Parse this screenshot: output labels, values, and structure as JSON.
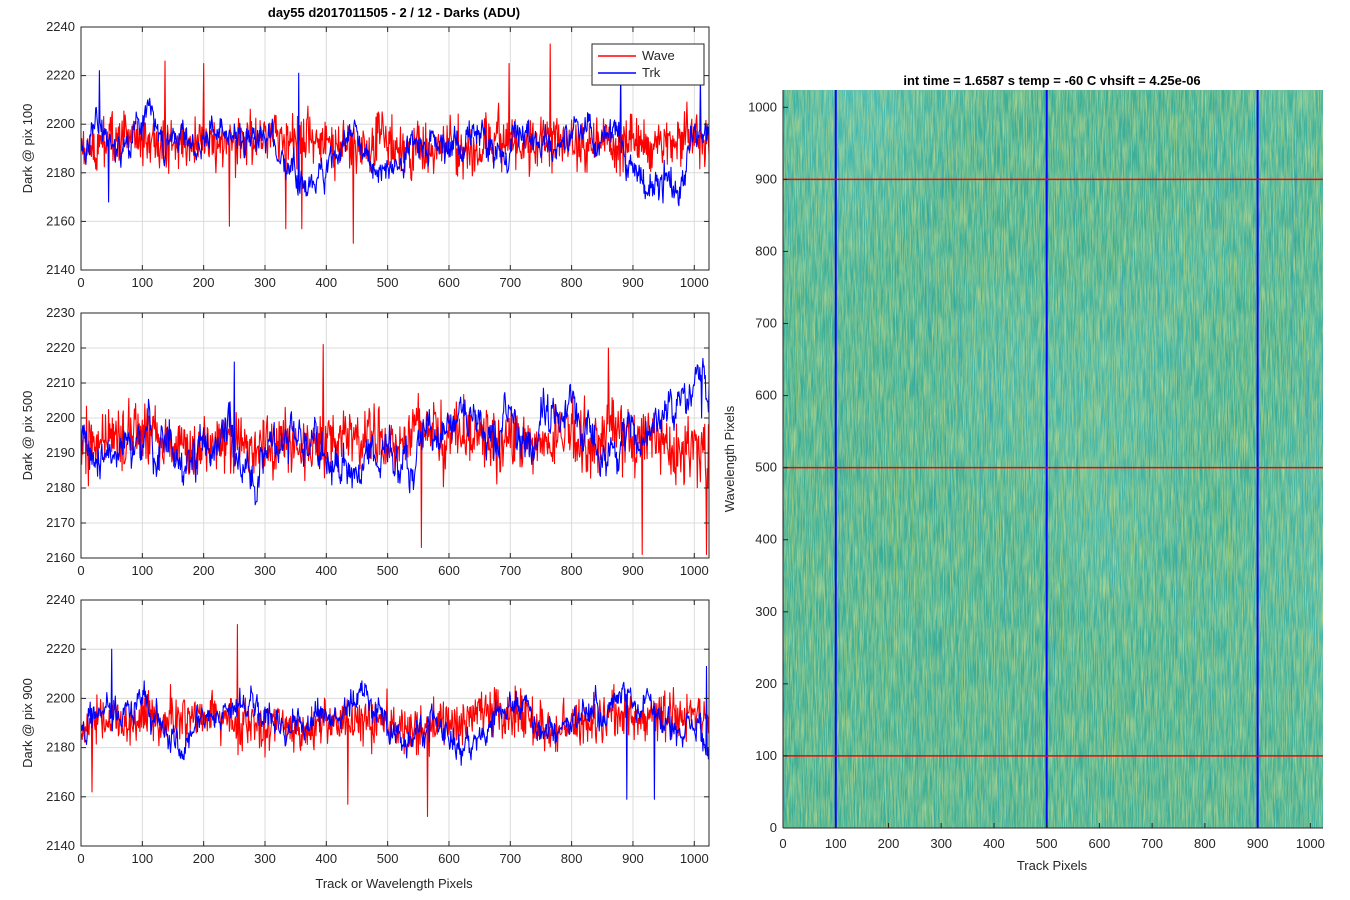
{
  "figure": {
    "title": "day55 d2017011505 - 2 / 12 - Darks (ADU)",
    "shared_xlabel": "Track or Wavelength Pixels"
  },
  "colors": {
    "wave": "#ff0000",
    "trk": "#0000ff",
    "grid": "#dcdcdc",
    "axis": "#262626"
  },
  "chart_data": [
    {
      "type": "line",
      "ylabel": "Dark @ pix 100",
      "xlim": [
        0,
        1024
      ],
      "ylim": [
        2140,
        2240
      ],
      "xticks": [
        0,
        100,
        200,
        300,
        400,
        500,
        600,
        700,
        800,
        900,
        1000
      ],
      "yticks": [
        2140,
        2160,
        2180,
        2200,
        2220,
        2240
      ],
      "grid": true,
      "legend": {
        "placement": "top-right",
        "entries": [
          "Wave",
          "Trk"
        ]
      },
      "series": [
        {
          "name": "Wave",
          "mean": 2192,
          "noise": 8.5,
          "wander": 2,
          "seed": 11,
          "spikes": [
            [
              242,
              2158
            ],
            [
              334,
              2157
            ],
            [
              360,
              2157
            ],
            [
              444,
              2151
            ],
            [
              765,
              2233
            ],
            [
              698,
              2225
            ],
            [
              137,
              2226
            ],
            [
              200,
              2225
            ]
          ]
        },
        {
          "name": "Trk",
          "mean": 2193,
          "noise": 3.5,
          "wander": 8,
          "seed": 23,
          "spikes": [
            [
              30,
              2222
            ],
            [
              45,
              2168
            ],
            [
              355,
              2221
            ],
            [
              880,
              2222
            ],
            [
              1010,
              2220
            ]
          ]
        }
      ]
    },
    {
      "type": "line",
      "ylabel": "Dark @ pix 500",
      "xlim": [
        0,
        1024
      ],
      "ylim": [
        2160,
        2230
      ],
      "xticks": [
        0,
        100,
        200,
        300,
        400,
        500,
        600,
        700,
        800,
        900,
        1000
      ],
      "yticks": [
        2160,
        2170,
        2180,
        2190,
        2200,
        2210,
        2220,
        2230
      ],
      "grid": true,
      "series": [
        {
          "name": "Wave",
          "mean": 2194,
          "noise": 7.5,
          "wander": 2,
          "seed": 37,
          "spikes": [
            [
              395,
              2221
            ],
            [
              860,
              2220
            ],
            [
              555,
              2163
            ],
            [
              1020,
              2161
            ],
            [
              915,
              2161
            ]
          ]
        },
        {
          "name": "Trk",
          "mean": 2192,
          "noise": 3,
          "wander": 7,
          "seed": 41,
          "spikes": [
            [
              250,
              2216
            ],
            [
              1012,
              2200
            ]
          ]
        }
      ]
    },
    {
      "type": "line",
      "ylabel": "Dark @ pix 900",
      "xlim": [
        0,
        1024
      ],
      "ylim": [
        2140,
        2240
      ],
      "xticks": [
        0,
        100,
        200,
        300,
        400,
        500,
        600,
        700,
        800,
        900,
        1000
      ],
      "yticks": [
        2140,
        2160,
        2180,
        2200,
        2220,
        2240
      ],
      "grid": true,
      "series": [
        {
          "name": "Wave",
          "mean": 2192,
          "noise": 8,
          "wander": 2,
          "seed": 53,
          "spikes": [
            [
              255,
              2230
            ],
            [
              565,
              2152
            ],
            [
              18,
              2162
            ],
            [
              435,
              2157
            ]
          ]
        },
        {
          "name": "Trk",
          "mean": 2192,
          "noise": 3.5,
          "wander": 7,
          "seed": 67,
          "spikes": [
            [
              50,
              2220
            ],
            [
              890,
              2159
            ],
            [
              935,
              2159
            ],
            [
              1020,
              2213
            ]
          ]
        }
      ]
    },
    {
      "type": "heatmap",
      "title": "int time = 1.6587 s    temp = -60 C    vhsift = 4.25e-06",
      "xlabel": "Track Pixels",
      "ylabel": "Wavelength Pixels",
      "xlim": [
        0,
        1024
      ],
      "ylim": [
        0,
        1024
      ],
      "xticks": [
        0,
        100,
        200,
        300,
        400,
        500,
        600,
        700,
        800,
        900,
        1000
      ],
      "yticks": [
        0,
        100,
        200,
        300,
        400,
        500,
        600,
        700,
        800,
        900,
        1000
      ],
      "colormap": "parula",
      "vertical_markers": [
        100,
        500,
        900
      ],
      "horizontal_markers": [
        100,
        500,
        900
      ]
    }
  ]
}
